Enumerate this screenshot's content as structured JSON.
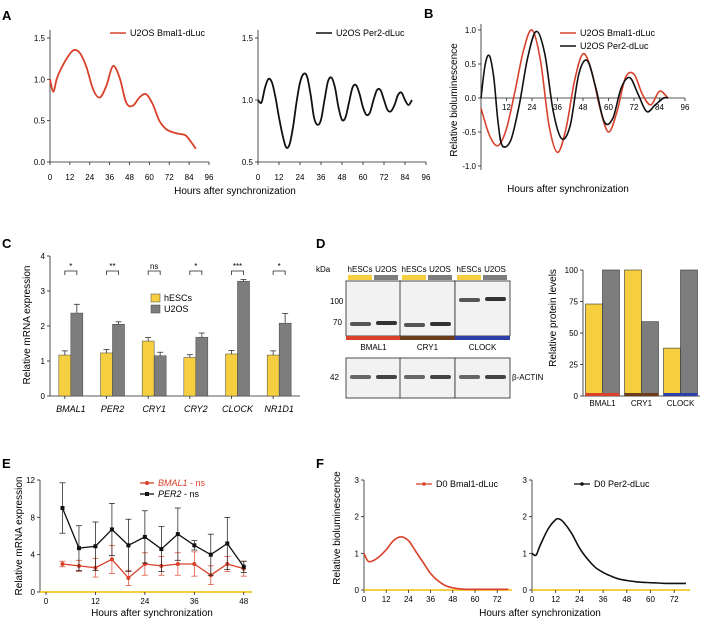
{
  "colors": {
    "red": "#d9412b",
    "black": "#111111",
    "yellow": "#f5cf3f",
    "gray": "#7d7d7d",
    "brown": "#6b3d1c",
    "blue": "#2f3fa8"
  },
  "panel_labels": [
    "A",
    "B",
    "C",
    "D",
    "E",
    "F"
  ],
  "panelA": {
    "xlabel": "Hours after synchronization",
    "left": {
      "legend": "U2OS Bmal1-dLuc",
      "yticks": [
        "0.0",
        "0.5",
        "1.0",
        "1.5"
      ],
      "xticks": [
        "0",
        "12",
        "24",
        "36",
        "48",
        "60",
        "72",
        "84",
        "96"
      ]
    },
    "right": {
      "legend": "U2OS Per2-dLuc",
      "yticks": [
        "0.5",
        "1.0",
        "1.5"
      ],
      "xticks": [
        "0",
        "12",
        "24",
        "36",
        "48",
        "60",
        "72",
        "84",
        "96"
      ]
    }
  },
  "panelB": {
    "ylabel": "Relative bioluminescence",
    "xlabel": "Hours after synchronization",
    "legend": [
      "U2OS Bmal1-dLuc",
      "U2OS Per2-dLuc"
    ],
    "yticks": [
      "-1.0",
      "-0.5",
      "0.0",
      "0.5",
      "1.0"
    ],
    "xticks": [
      "12",
      "24",
      "36",
      "48",
      "60",
      "72",
      "84",
      "96"
    ]
  },
  "panelC": {
    "ylabel": "Relative mRNA expression",
    "legend": [
      "hESCs",
      "U2OS"
    ],
    "yticks": [
      "0",
      "1",
      "2",
      "3",
      "4"
    ],
    "significance": [
      "*",
      "**",
      "ns",
      "*",
      "***",
      "*"
    ]
  },
  "panelD": {
    "kda_label": "kDa",
    "mw_markers": [
      "100",
      "70",
      "42"
    ],
    "lane_labels": [
      "hESCs",
      "U2OS"
    ],
    "blot_names": [
      "BMAL1",
      "CRY1",
      "CLOCK"
    ],
    "actin_label": "β-ACTIN",
    "bar_ylabel": "Relative protein levels",
    "bar_yticks": [
      "0",
      "25",
      "50",
      "75",
      "100"
    ]
  },
  "panelE": {
    "ylabel": "Relative mRNA expression",
    "xlabel": "Hours after synchronization",
    "legend": [
      "BMAL1",
      "PER2"
    ],
    "legend_suffix": " - ns",
    "yticks": [
      "0",
      "4",
      "8",
      "12"
    ],
    "xticks": [
      "0",
      "12",
      "24",
      "36",
      "48"
    ]
  },
  "panelF": {
    "ylabel": "Relative bioluminescence",
    "xlabel": "Hours after synchronization",
    "left": {
      "legend": "D0 Bmal1-dLuc",
      "yticks": [
        "0",
        "1",
        "2",
        "3"
      ],
      "xticks": [
        "0",
        "12",
        "24",
        "36",
        "48",
        "60",
        "72"
      ]
    },
    "right": {
      "legend": "D0 Per2-dLuc",
      "yticks": [
        "0",
        "1",
        "2",
        "3"
      ],
      "xticks": [
        "0",
        "12",
        "24",
        "36",
        "48",
        "60",
        "72"
      ]
    }
  },
  "chart_data": [
    {
      "panel": "A-left",
      "type": "line",
      "xlabel": "Hours after synchronization",
      "xlim": [
        0,
        96
      ],
      "ylim": [
        0,
        1.5
      ],
      "series": [
        {
          "name": "U2OS Bmal1-dLuc",
          "x": [
            0,
            2,
            4,
            6,
            10,
            14,
            18,
            22,
            26,
            30,
            34,
            38,
            42,
            46,
            50,
            54,
            58,
            62,
            66,
            70,
            74,
            78,
            82,
            86,
            88
          ],
          "y": [
            1.0,
            0.85,
            1.0,
            1.1,
            1.25,
            1.35,
            1.32,
            1.15,
            0.88,
            0.78,
            0.92,
            1.16,
            1.02,
            0.72,
            0.68,
            0.78,
            0.82,
            0.7,
            0.5,
            0.4,
            0.36,
            0.34,
            0.32,
            0.22,
            0.16
          ]
        }
      ]
    },
    {
      "panel": "A-right",
      "type": "line",
      "xlabel": "Hours after synchronization",
      "xlim": [
        0,
        96
      ],
      "ylim": [
        0.5,
        1.5
      ],
      "series": [
        {
          "name": "U2OS Per2-dLuc",
          "x": [
            0,
            2,
            4,
            6,
            8,
            10,
            12,
            14,
            16,
            18,
            20,
            22,
            24,
            26,
            28,
            30,
            32,
            34,
            36,
            38,
            40,
            42,
            44,
            46,
            48,
            50,
            52,
            54,
            56,
            58,
            60,
            62,
            64,
            66,
            68,
            70,
            72,
            74,
            76,
            78,
            80,
            82,
            84,
            86,
            88
          ],
          "y": [
            1.0,
            0.98,
            1.1,
            1.17,
            1.14,
            1.02,
            0.86,
            0.72,
            0.62,
            0.64,
            0.78,
            0.98,
            1.14,
            1.21,
            1.19,
            1.05,
            0.86,
            0.8,
            0.84,
            1.0,
            1.15,
            1.18,
            1.1,
            0.94,
            0.84,
            0.86,
            0.98,
            1.1,
            1.12,
            1.05,
            0.94,
            0.88,
            0.9,
            1.0,
            1.08,
            1.08,
            1.0,
            0.92,
            0.91,
            0.96,
            1.04,
            1.06,
            1.0,
            0.96,
            1.0
          ]
        }
      ]
    },
    {
      "panel": "B",
      "type": "line",
      "ylabel": "Relative bioluminescence",
      "xlabel": "Hours after synchronization",
      "xlim": [
        0,
        96
      ],
      "ylim": [
        -1,
        1
      ],
      "series": [
        {
          "name": "U2OS Bmal1-dLuc",
          "x": [
            0,
            4,
            8,
            12,
            16,
            20,
            24,
            28,
            32,
            36,
            40,
            44,
            48,
            52,
            56,
            60,
            64,
            68,
            72,
            76,
            80,
            84,
            88
          ],
          "y": [
            -0.15,
            -0.55,
            -0.7,
            -0.45,
            0.1,
            0.7,
            1.0,
            0.55,
            -0.4,
            -0.8,
            -0.45,
            0.25,
            0.65,
            0.4,
            -0.15,
            -0.5,
            -0.2,
            0.3,
            0.35,
            0.05,
            -0.1,
            0.1,
            0.0
          ]
        },
        {
          "name": "U2OS Per2-dLuc",
          "x": [
            0,
            2,
            4,
            6,
            8,
            10,
            14,
            18,
            22,
            26,
            30,
            34,
            38,
            42,
            46,
            50,
            54,
            58,
            62,
            66,
            70,
            74,
            78,
            82,
            86,
            88
          ],
          "y": [
            0.0,
            0.5,
            0.62,
            0.3,
            -0.35,
            -0.7,
            -0.62,
            -0.1,
            0.6,
            0.98,
            0.65,
            -0.2,
            -0.6,
            -0.4,
            0.35,
            0.55,
            0.15,
            -0.35,
            -0.3,
            0.15,
            0.3,
            0.05,
            -0.2,
            -0.1,
            0.0,
            0.0
          ]
        }
      ]
    },
    {
      "panel": "C",
      "type": "bar",
      "ylabel": "Relative mRNA expression",
      "ylim": [
        0,
        4
      ],
      "categories": [
        "BMAL1",
        "PER2",
        "CRY1",
        "CRY2",
        "CLOCK",
        "NR1D1"
      ],
      "series": [
        {
          "name": "hESCs",
          "values": [
            1.17,
            1.23,
            1.57,
            1.1,
            1.2,
            1.17
          ],
          "errors": [
            0.12,
            0.1,
            0.1,
            0.08,
            0.1,
            0.12
          ]
        },
        {
          "name": "U2OS",
          "values": [
            2.37,
            2.05,
            1.15,
            1.68,
            3.28,
            2.08
          ],
          "errors": [
            0.25,
            0.07,
            0.1,
            0.12,
            0.05,
            0.28
          ]
        }
      ]
    },
    {
      "panel": "D",
      "type": "bar",
      "ylabel": "Relative protein levels",
      "ylim": [
        0,
        100
      ],
      "categories": [
        "BMAL1",
        "CRY1",
        "CLOCK"
      ],
      "series": [
        {
          "name": "hESCs",
          "values": [
            73,
            100,
            38
          ]
        },
        {
          "name": "U2OS",
          "values": [
            100,
            59,
            100
          ]
        }
      ]
    },
    {
      "panel": "E",
      "type": "line",
      "ylabel": "Relative mRNA expression",
      "xlabel": "Hours after synchronization",
      "xlim": [
        0,
        48
      ],
      "ylim": [
        0,
        12
      ],
      "series": [
        {
          "name": "BMAL1 - ns",
          "x": [
            4,
            8,
            12,
            16,
            20,
            24,
            28,
            32,
            36,
            40,
            44,
            48
          ],
          "y": [
            3.0,
            2.8,
            2.6,
            3.5,
            1.5,
            3.0,
            2.8,
            3.0,
            3.0,
            1.8,
            3.0,
            2.5
          ],
          "errors": [
            0.3,
            0.6,
            1.0,
            1.5,
            0.8,
            1.2,
            1.0,
            1.2,
            1.3,
            1.0,
            0.8,
            0.8
          ]
        },
        {
          "name": "PER2 - ns",
          "x": [
            4,
            8,
            12,
            16,
            20,
            24,
            28,
            32,
            36,
            40,
            44,
            48
          ],
          "y": [
            9.0,
            4.7,
            4.9,
            6.7,
            5.0,
            5.9,
            4.6,
            6.2,
            5.0,
            4.0,
            5.2,
            2.7
          ],
          "errors": [
            2.7,
            2.4,
            2.6,
            2.8,
            2.8,
            2.8,
            2.4,
            2.8,
            0.5,
            2.2,
            2.8,
            0.6
          ]
        }
      ]
    },
    {
      "panel": "F-left",
      "type": "line",
      "ylabel": "Relative bioluminescence",
      "xlabel": "Hours after synchronization",
      "xlim": [
        0,
        80
      ],
      "ylim": [
        0,
        3
      ],
      "series": [
        {
          "name": "D0 Bmal1-dLuc",
          "x": [
            0,
            2,
            4,
            8,
            12,
            16,
            20,
            24,
            28,
            32,
            36,
            40,
            44,
            48,
            52,
            56,
            60,
            64,
            68,
            72,
            76,
            78
          ],
          "y": [
            1.0,
            0.8,
            0.78,
            0.9,
            1.1,
            1.35,
            1.45,
            1.35,
            1.05,
            0.75,
            0.45,
            0.25,
            0.12,
            0.06,
            0.03,
            0.02,
            0.02,
            0.02,
            0.02,
            0.02,
            0.02,
            0.02
          ]
        }
      ]
    },
    {
      "panel": "F-right",
      "type": "line",
      "ylabel": "",
      "xlabel": "Hours after synchronization",
      "xlim": [
        0,
        80
      ],
      "ylim": [
        0,
        3
      ],
      "series": [
        {
          "name": "D0 Per2-dLuc",
          "x": [
            0,
            2,
            4,
            8,
            12,
            14,
            16,
            20,
            24,
            28,
            32,
            36,
            40,
            44,
            48,
            52,
            56,
            60,
            64,
            68,
            72,
            76,
            78
          ],
          "y": [
            1.0,
            0.95,
            1.2,
            1.65,
            1.92,
            1.93,
            1.85,
            1.55,
            1.15,
            0.85,
            0.62,
            0.48,
            0.38,
            0.3,
            0.26,
            0.23,
            0.21,
            0.2,
            0.19,
            0.18,
            0.18,
            0.18,
            0.18
          ]
        }
      ]
    }
  ]
}
